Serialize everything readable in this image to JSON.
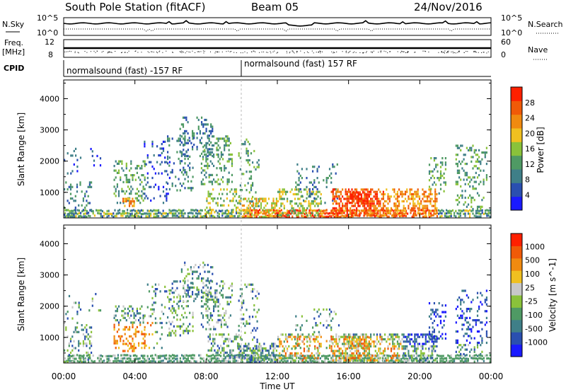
{
  "header": {
    "station": "South Pole Station (fitACF)",
    "beam": "Beam 05",
    "date": "24/Nov/2016"
  },
  "params": {
    "nsky_label": "N.Sky",
    "nsky_top": "10^5",
    "nsky_bottom": "10^0",
    "nsearch_label": "N.Search",
    "nsearch_top": "10^5",
    "nsearch_bottom": "10^0",
    "freq_label": "Freq.",
    "freq_unit": "[MHz]",
    "freq_top": "12",
    "freq_bottom": "8",
    "nave_label": "Nave",
    "nave_top": "60",
    "nave_bottom": "0",
    "cpid_label": "CPID",
    "cpid_1": "normalsound (fast) -157 RF",
    "cpid_2": "normalsound (fast) 157 RF"
  },
  "colors": {
    "power": [
      "#1a1aff",
      "#2a4fb0",
      "#3f7f88",
      "#4f9a64",
      "#8ac23a",
      "#f0c020",
      "#f08a10",
      "#f05a08",
      "#ff2000"
    ],
    "velocity": [
      "#1a1aff",
      "#2a4fb0",
      "#3f7f88",
      "#4f9a64",
      "#8ac23a",
      "#c8c8c8",
      "#f0c020",
      "#f08a10",
      "#f05a08",
      "#ff2000"
    ]
  },
  "chart_data": [
    {
      "type": "heatmap",
      "name": "power",
      "ylabel": "Slant Range [km]",
      "yticks": [
        1000,
        2000,
        3000,
        4000
      ],
      "ylim": [
        180,
        4600
      ],
      "xticks": [
        "00:00",
        "04:00",
        "08:00",
        "12:00",
        "16:00",
        "20:00",
        "00:00"
      ],
      "xlim_hours": [
        0,
        24
      ],
      "colorbar": {
        "label": "Power [dB]",
        "ticks": [
          "4",
          "8",
          "12",
          "16",
          "20",
          "24",
          "28"
        ],
        "range": [
          0,
          30
        ]
      }
    },
    {
      "type": "heatmap",
      "name": "velocity",
      "ylabel": "Slant Range [km]",
      "yticks": [
        1000,
        2000,
        3000,
        4000
      ],
      "ylim": [
        180,
        4600
      ],
      "xticks": [
        "00:00",
        "04:00",
        "08:00",
        "12:00",
        "16:00",
        "20:00",
        "00:00"
      ],
      "xlim_hours": [
        0,
        24
      ],
      "xlabel": "Time UT",
      "colorbar": {
        "label": "Velocity [m s^-1]",
        "ticks": [
          "1000",
          "500",
          "100",
          "25",
          "-25",
          "-100",
          "-500",
          "-1000"
        ]
      }
    }
  ]
}
